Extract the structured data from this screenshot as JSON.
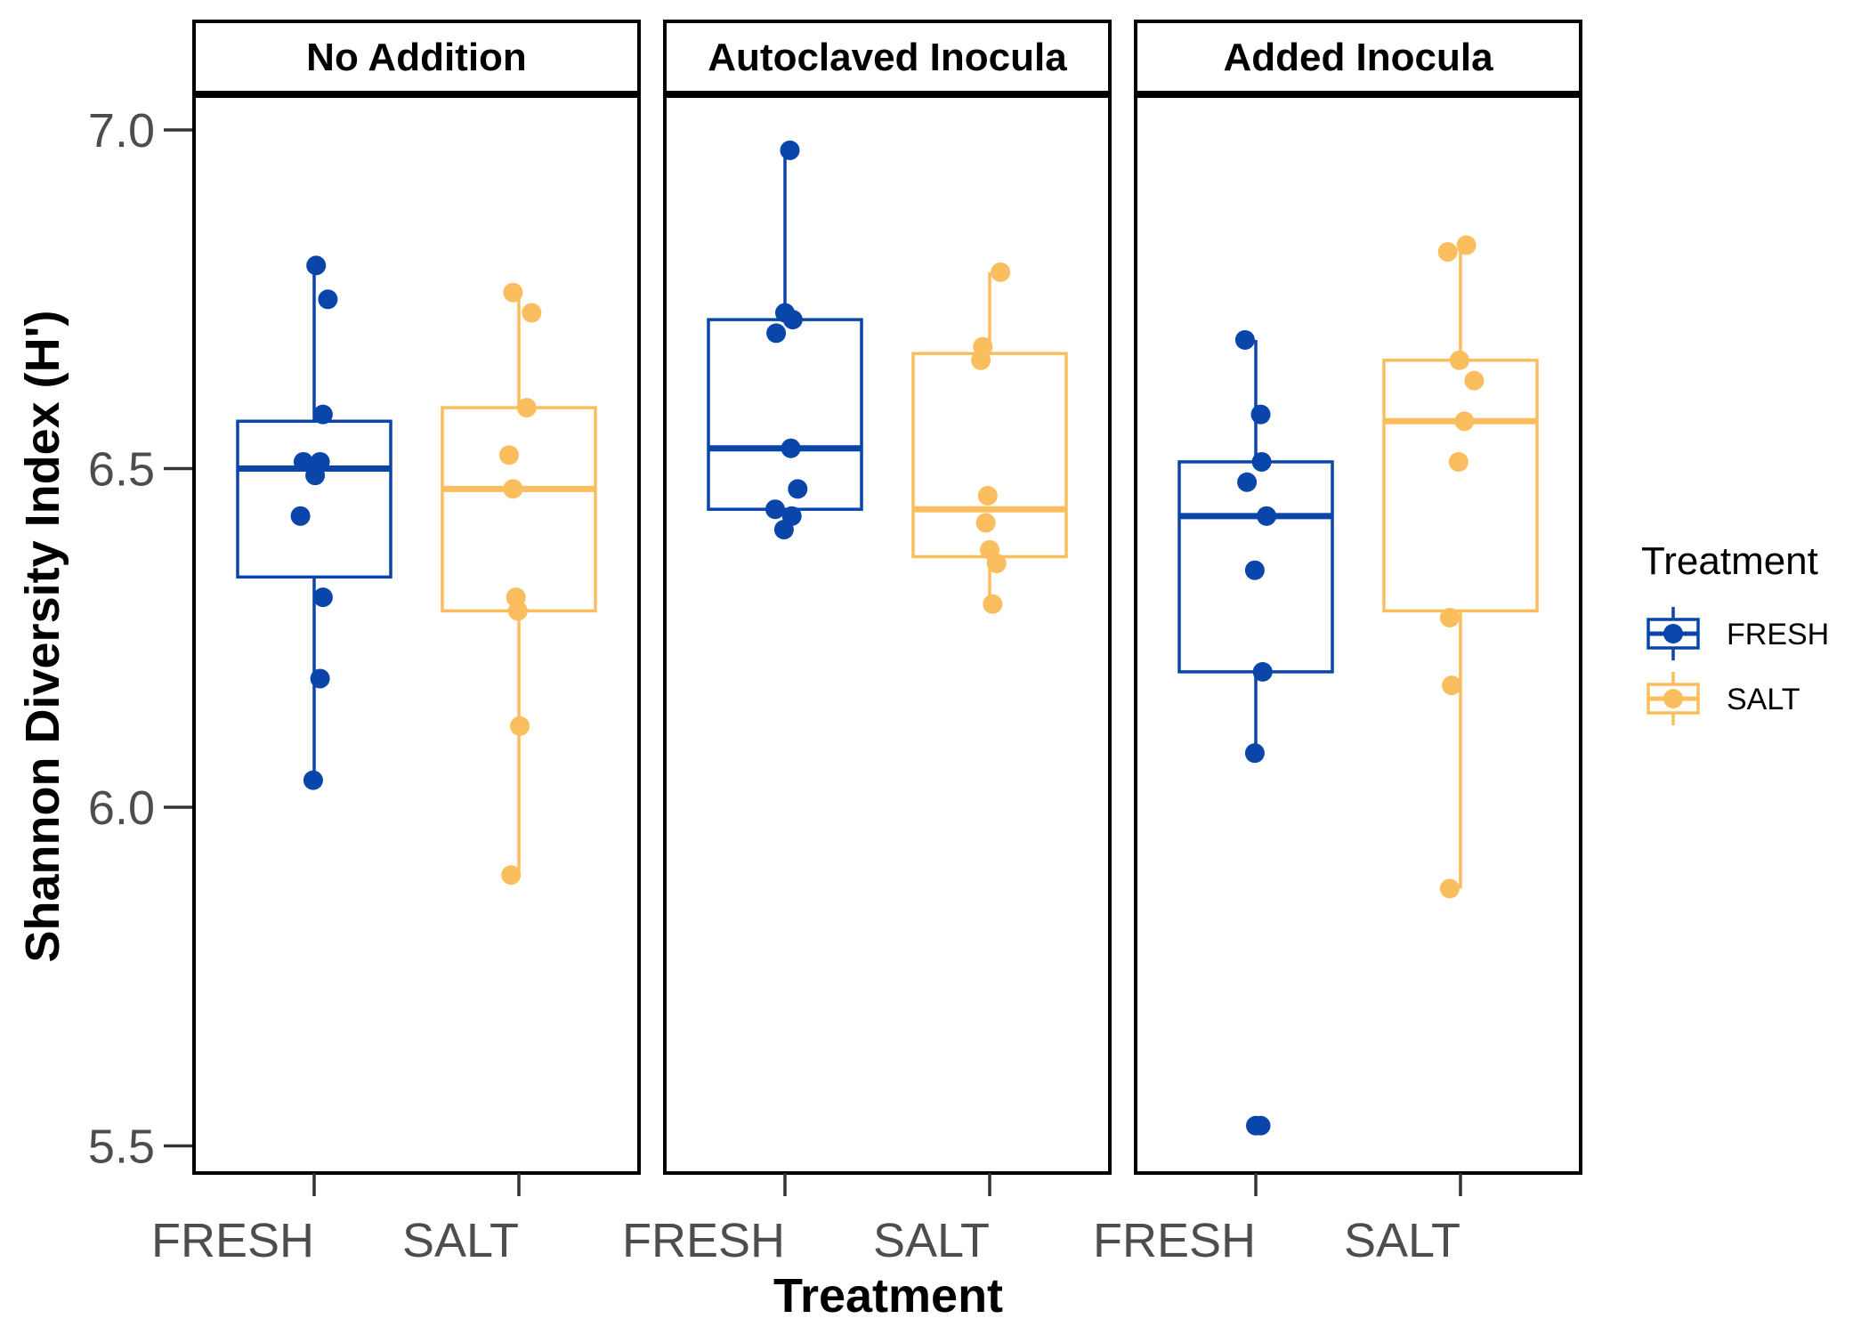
{
  "chart_data": {
    "type": "box",
    "xlabel": "Treatment",
    "ylabel": "Shannon Diversity Index (H')",
    "ylim": [
      5.46,
      7.05
    ],
    "yticks": [
      "5.5",
      "6.0",
      "6.5",
      "7.0"
    ],
    "ytick_values": [
      5.5,
      6.0,
      6.5,
      7.0
    ],
    "categories": [
      "FRESH",
      "SALT"
    ],
    "legend": {
      "title": "Treatment",
      "placement": "right",
      "entries": [
        {
          "name": "FRESH",
          "color": "#0a46aa"
        },
        {
          "name": "SALT",
          "color": "#fbbe5f"
        }
      ]
    },
    "colors": {
      "FRESH": "#0a46aa",
      "SALT": "#fbbe5f"
    },
    "panels": [
      {
        "title": "No Addition",
        "groups": [
          {
            "category": "FRESH",
            "min": 6.04,
            "q1": 6.34,
            "median": 6.5,
            "q3": 6.57,
            "max": 6.8,
            "points": [
              6.8,
              6.75,
              6.58,
              6.51,
              6.51,
              6.49,
              6.43,
              6.31,
              6.19,
              6.04
            ],
            "jitter": [
              0.02,
              0.14,
              0.09,
              -0.11,
              0.06,
              0.01,
              -0.14,
              0.09,
              0.06,
              -0.01
            ]
          },
          {
            "category": "SALT",
            "min": 5.9,
            "q1": 6.29,
            "median": 6.47,
            "q3": 6.59,
            "max": 6.76,
            "points": [
              6.76,
              6.73,
              6.59,
              6.52,
              6.47,
              6.31,
              6.29,
              6.12,
              5.9
            ],
            "jitter": [
              -0.06,
              0.13,
              0.08,
              -0.1,
              -0.06,
              -0.03,
              -0.01,
              0.01,
              -0.08
            ]
          }
        ]
      },
      {
        "title": "Autoclaved Inocula",
        "groups": [
          {
            "category": "FRESH",
            "min": 6.41,
            "q1": 6.44,
            "median": 6.53,
            "q3": 6.72,
            "max": 6.97,
            "points": [
              6.97,
              6.73,
              6.72,
              6.7,
              6.53,
              6.47,
              6.44,
              6.43,
              6.41
            ],
            "jitter": [
              0.05,
              0.0,
              0.08,
              -0.09,
              0.06,
              0.13,
              -0.1,
              0.07,
              -0.01
            ]
          },
          {
            "category": "SALT",
            "min": 6.3,
            "q1": 6.37,
            "median": 6.44,
            "q3": 6.67,
            "max": 6.79,
            "points": [
              6.79,
              6.68,
              6.66,
              6.46,
              6.42,
              6.38,
              6.36,
              6.3
            ],
            "jitter": [
              0.11,
              -0.07,
              -0.09,
              -0.02,
              -0.04,
              0.0,
              0.07,
              0.03
            ]
          }
        ]
      },
      {
        "title": "Added Inocula",
        "groups": [
          {
            "category": "FRESH",
            "min": 6.08,
            "q1": 6.2,
            "median": 6.43,
            "q3": 6.51,
            "max": 6.69,
            "points": [
              6.69,
              6.58,
              6.51,
              6.48,
              6.43,
              6.35,
              6.2,
              6.08,
              5.53,
              5.53
            ],
            "jitter": [
              -0.11,
              0.05,
              0.06,
              -0.09,
              0.11,
              -0.01,
              0.07,
              -0.01,
              0.0,
              0.05
            ]
          },
          {
            "category": "SALT",
            "min": 5.88,
            "q1": 6.29,
            "median": 6.57,
            "q3": 6.66,
            "max": 6.83,
            "points": [
              6.83,
              6.82,
              6.66,
              6.63,
              6.57,
              6.51,
              6.28,
              6.18,
              5.88
            ],
            "jitter": [
              0.06,
              -0.13,
              -0.01,
              0.14,
              0.04,
              -0.02,
              -0.11,
              -0.09,
              -0.11
            ]
          }
        ]
      }
    ]
  }
}
